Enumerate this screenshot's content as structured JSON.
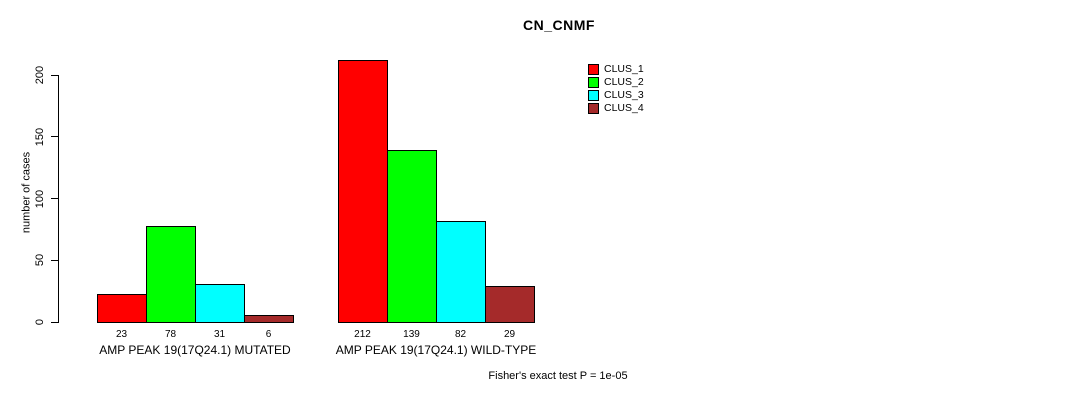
{
  "chart_data": {
    "type": "bar",
    "title": "CN_CNMF",
    "ylabel": "number of cases",
    "xlabel": "",
    "ylim": [
      0,
      200
    ],
    "yticks": [
      0,
      50,
      100,
      150,
      200
    ],
    "grid": false,
    "legend_position": "top-right",
    "categories": [
      "AMP PEAK 19(17Q24.1) MUTATED",
      "AMP PEAK 19(17Q24.1) WILD-TYPE"
    ],
    "series": [
      {
        "name": "CLUS_1",
        "color": "#FF0000",
        "values": [
          23,
          212
        ]
      },
      {
        "name": "CLUS_2",
        "color": "#00FF00",
        "values": [
          78,
          139
        ]
      },
      {
        "name": "CLUS_3",
        "color": "#00FFFF",
        "values": [
          31,
          82
        ]
      },
      {
        "name": "CLUS_4",
        "color": "#A52A2A",
        "values": [
          6,
          29
        ]
      }
    ],
    "bar_value_labels": [
      [
        23,
        78,
        31,
        6
      ],
      [
        212,
        139,
        82,
        29
      ]
    ],
    "annotation": "Fisher's exact test P = 1e-05"
  }
}
